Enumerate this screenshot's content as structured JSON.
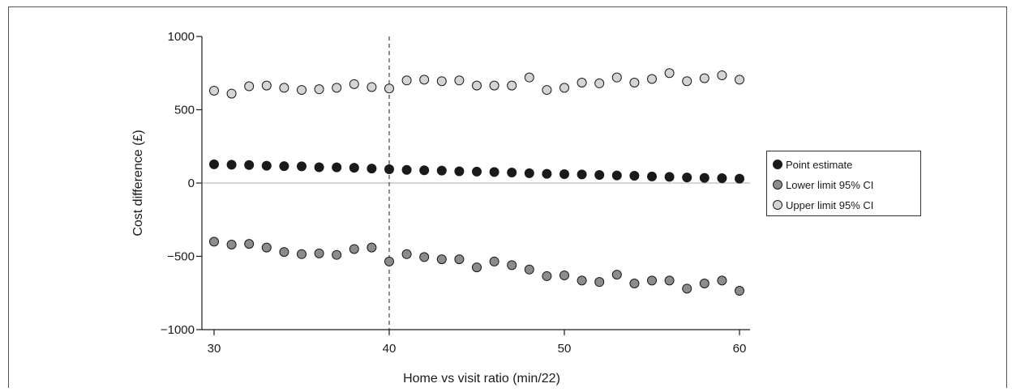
{
  "chart_data": {
    "type": "scatter",
    "title": "",
    "xlabel": "Home vs visit ratio (min/22)",
    "ylabel": "Cost difference (£)",
    "xlim": [
      29.2,
      60.6
    ],
    "ylim": [
      -1000,
      1000
    ],
    "xticks": [
      30,
      40,
      50,
      60
    ],
    "yticks": [
      -1000,
      -500,
      0,
      500,
      1000
    ],
    "ytick_labels": [
      "−1000",
      "−500",
      "0",
      "500",
      "1000"
    ],
    "reference_vline_x": 40,
    "zero_line": true,
    "grid": false,
    "legend_position": "right",
    "x": [
      30,
      31,
      32,
      33,
      34,
      35,
      36,
      37,
      38,
      39,
      40,
      41,
      42,
      43,
      44,
      45,
      46,
      47,
      48,
      49,
      50,
      51,
      52,
      53,
      54,
      55,
      56,
      57,
      58,
      59,
      60
    ],
    "series": [
      {
        "name": "Point estimate",
        "color": "#1a1a1a",
        "values": [
          128,
          125,
          123,
          118,
          115,
          114,
          108,
          107,
          104,
          99,
          94,
          90,
          87,
          85,
          80,
          78,
          75,
          72,
          67,
          63,
          61,
          59,
          55,
          52,
          50,
          45,
          42,
          38,
          35,
          33,
          30
        ]
      },
      {
        "name": "Lower limit 95% CI",
        "color": "#8c8c8c",
        "values": [
          -400,
          -420,
          -415,
          -440,
          -470,
          -485,
          -480,
          -490,
          -450,
          -440,
          -535,
          -485,
          -505,
          -520,
          -520,
          -575,
          -535,
          -560,
          -590,
          -635,
          -630,
          -665,
          -675,
          -625,
          -685,
          -665,
          -665,
          -720,
          -685,
          -665,
          -735
        ]
      },
      {
        "name": "Upper limit 95% CI",
        "color": "#d4d4d4",
        "values": [
          630,
          610,
          660,
          665,
          650,
          635,
          640,
          650,
          675,
          655,
          645,
          700,
          705,
          695,
          700,
          665,
          665,
          665,
          720,
          635,
          650,
          685,
          680,
          720,
          685,
          710,
          750,
          695,
          715,
          735,
          705
        ]
      }
    ]
  }
}
